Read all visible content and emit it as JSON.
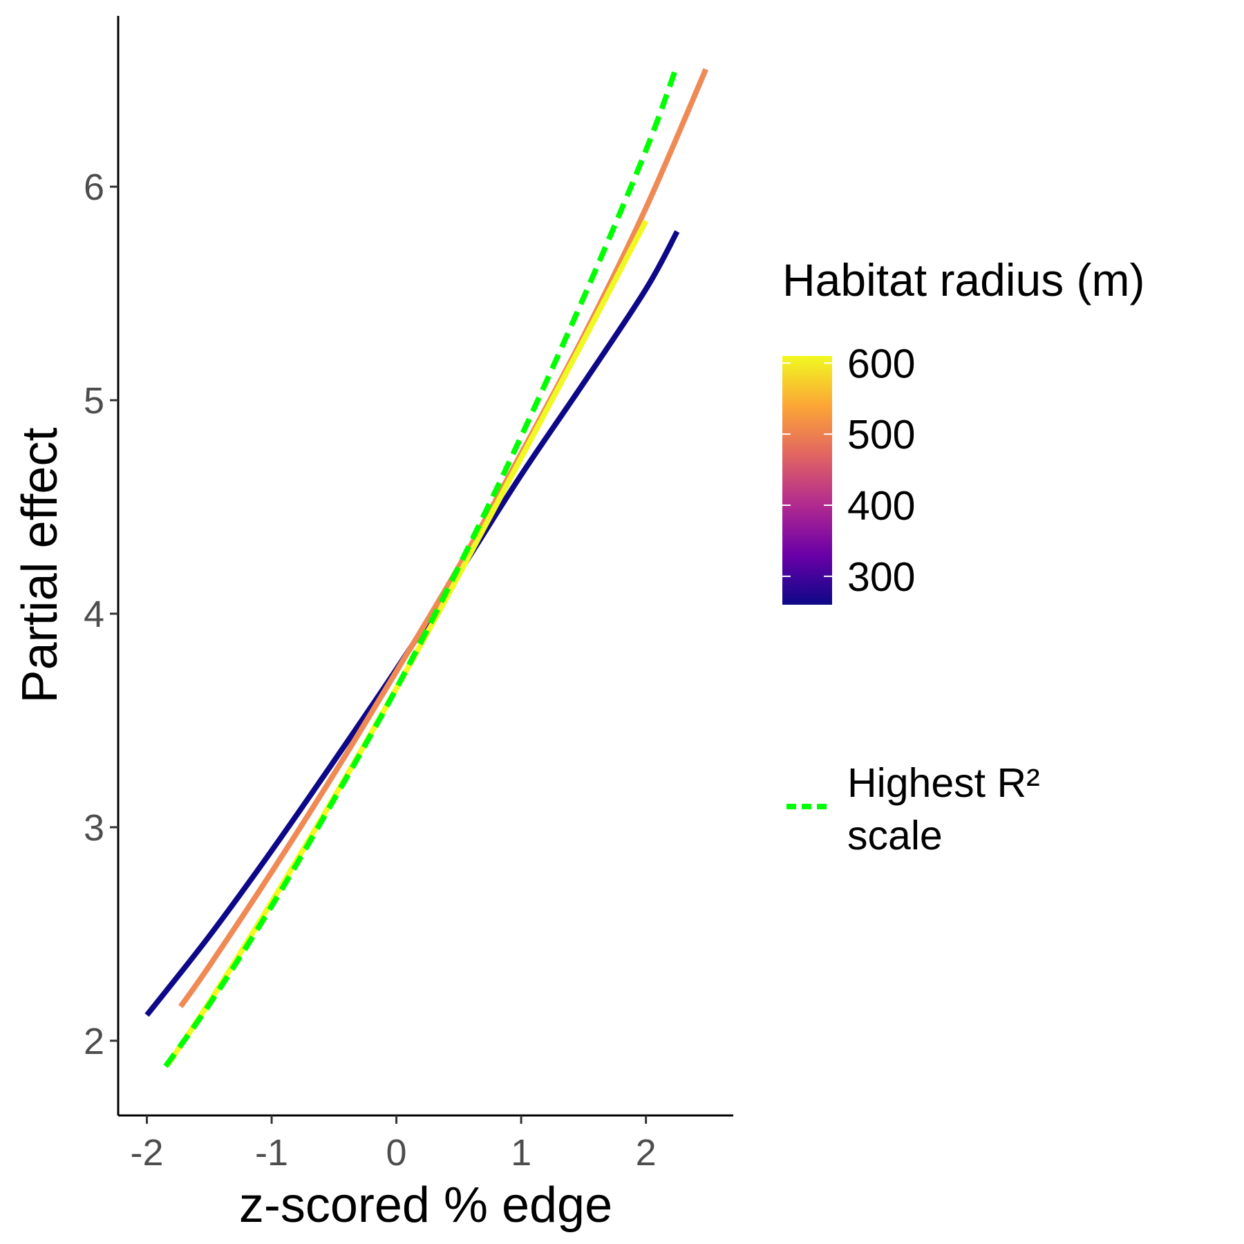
{
  "chart_data": {
    "type": "line",
    "xlabel": "z-scored % edge",
    "ylabel": "Partial effect",
    "xlim": [
      -2.23,
      2.7
    ],
    "ylim": [
      1.65,
      6.8
    ],
    "x_ticks": [
      -2,
      -1,
      0,
      1,
      2
    ],
    "y_ticks": [
      2,
      3,
      4,
      5,
      6
    ],
    "grid": false,
    "legend_placement": "right",
    "colorbar": {
      "title": "Habitat radius (m)",
      "ticks": [
        300,
        400,
        500,
        600
      ],
      "range": [
        260,
        610
      ],
      "colormap": "plasma",
      "colors": [
        "#0d0887",
        "#6a00a8",
        "#b12a90",
        "#e16462",
        "#fca636",
        "#f0f921"
      ]
    },
    "highest_r2_legend": {
      "line1": "Highest R²",
      "line2": "scale",
      "color": "#00ff00"
    },
    "series": [
      {
        "radius": 250,
        "color": "#0d0887",
        "points": [
          [
            -2.0,
            2.12
          ],
          [
            -1.5,
            2.49
          ],
          [
            -1.0,
            2.89
          ],
          [
            -0.5,
            3.31
          ],
          [
            0.0,
            3.74
          ],
          [
            0.5,
            4.19
          ],
          [
            1.0,
            4.65
          ],
          [
            1.5,
            5.08
          ],
          [
            2.0,
            5.52
          ],
          [
            2.25,
            5.79
          ]
        ]
      },
      {
        "radius": 525,
        "color": "#ef8a55",
        "points": [
          [
            -1.73,
            2.16
          ],
          [
            -1.5,
            2.35
          ],
          [
            -1.0,
            2.79
          ],
          [
            -0.5,
            3.25
          ],
          [
            0.0,
            3.73
          ],
          [
            0.5,
            4.22
          ],
          [
            1.0,
            4.75
          ],
          [
            1.5,
            5.3
          ],
          [
            2.0,
            5.9
          ],
          [
            2.48,
            6.55
          ]
        ]
      },
      {
        "radius": 600,
        "color": "#f0f921",
        "points": [
          [
            -1.83,
            1.89
          ],
          [
            -1.5,
            2.18
          ],
          [
            -1.0,
            2.65
          ],
          [
            -0.5,
            3.14
          ],
          [
            0.0,
            3.65
          ],
          [
            0.5,
            4.18
          ],
          [
            1.0,
            4.73
          ],
          [
            1.5,
            5.28
          ],
          [
            2.0,
            5.84
          ]
        ]
      },
      {
        "radius": 525,
        "color": "#00ff00",
        "dashed": true,
        "points": [
          [
            -1.85,
            1.88
          ],
          [
            -1.5,
            2.17
          ],
          [
            -1.0,
            2.63
          ],
          [
            -0.5,
            3.13
          ],
          [
            0.0,
            3.65
          ],
          [
            0.5,
            4.22
          ],
          [
            1.0,
            4.83
          ],
          [
            1.5,
            5.48
          ],
          [
            2.0,
            6.17
          ],
          [
            2.25,
            6.57
          ]
        ]
      }
    ]
  }
}
